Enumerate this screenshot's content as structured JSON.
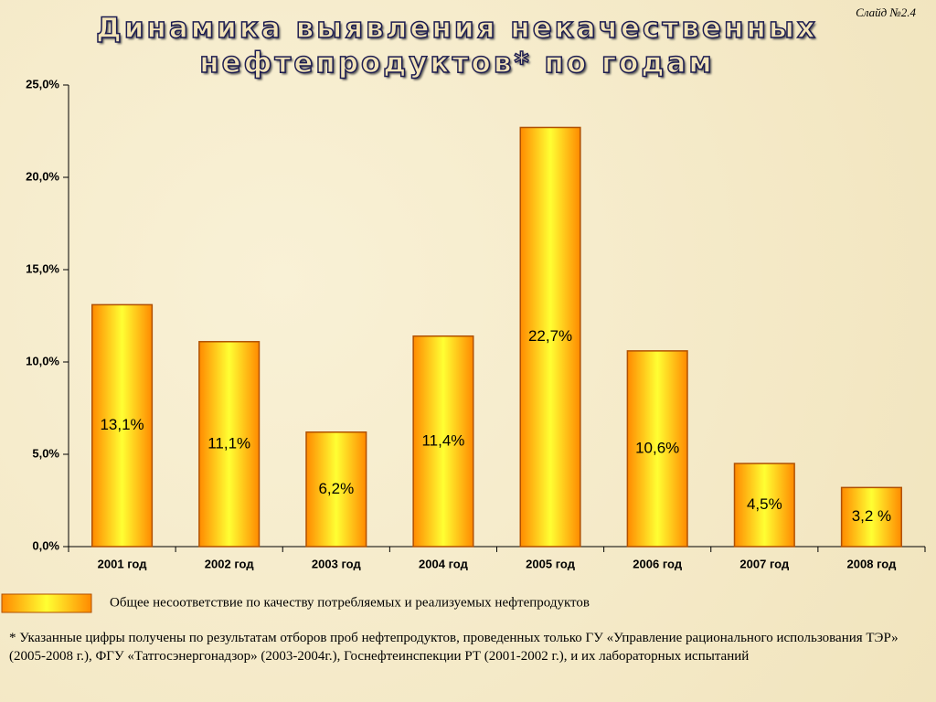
{
  "slide_label": "Слайд №2.4",
  "chart_data": {
    "type": "bar",
    "title": "Динамика выявления некачественных\nнефтепродуктов* по годам",
    "categories": [
      "2001 год",
      "2002 год",
      "2003 год",
      "2004 год",
      "2005 год",
      "2006 год",
      "2007 год",
      "2008 год"
    ],
    "series": [
      {
        "name": "Общее несоответствие по качеству потребляемых и реализуемых нефтепродуктов",
        "color": "#ff9900",
        "values": [
          13.1,
          11.1,
          6.2,
          11.4,
          22.7,
          10.6,
          4.5,
          3.2
        ],
        "value_labels": [
          "13,1%",
          "11,1%",
          "6,2%",
          "11,4%",
          "22,7%",
          "10,6%",
          "4,5%",
          "3,2 %"
        ]
      }
    ],
    "ylim": [
      0,
      25
    ],
    "yticks": [
      {
        "value": 0,
        "label": "0,0%"
      },
      {
        "value": 5,
        "label": "5,0%"
      },
      {
        "value": 10,
        "label": "10,0%"
      },
      {
        "value": 15,
        "label": "15,0%"
      },
      {
        "value": 20,
        "label": "20,0%"
      },
      {
        "value": 25,
        "label": "25,0%"
      }
    ],
    "legend": "bottom-left"
  },
  "footnote": "* Указанные цифры получены по результатам отборов проб нефтепродуктов, проведенных только  ГУ «Управление рационального использования ТЭР» (2005-2008 г.), ФГУ «Татгосэнергонадзор» (2003-2004г.), Госнефтеинспекции РТ (2001-2002 г.), и их лабораторных испытаний"
}
